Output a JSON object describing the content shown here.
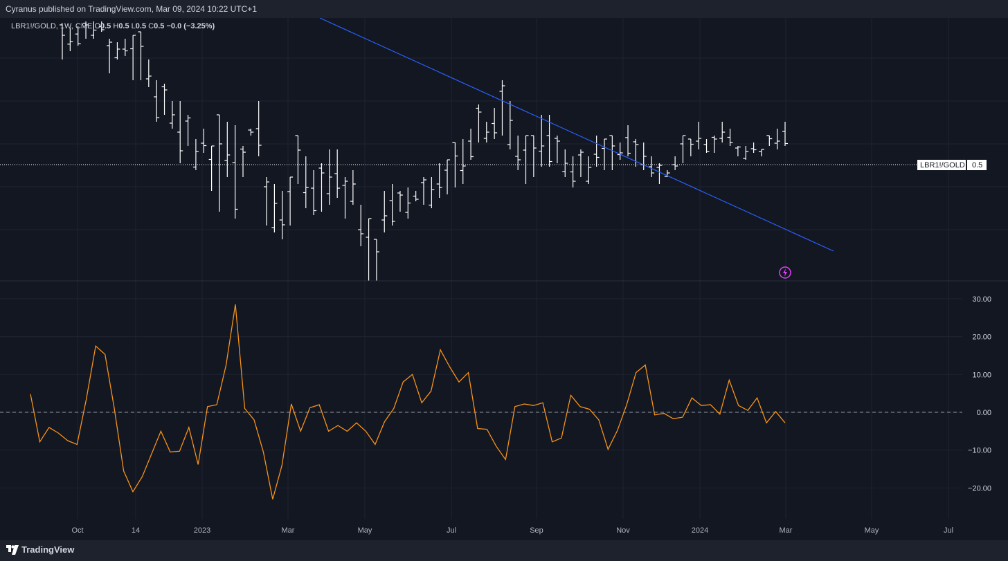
{
  "header": {
    "published": "Cyranus published on TradingView.com, Mar 09, 2024 10:22 UTC+1"
  },
  "footer": {
    "brand": "TradingView"
  },
  "legend": {
    "symbol": "LBR1!/GOLD, 1W, CME",
    "o_label": "O",
    "o_value": "0.5",
    "h_label": "H",
    "h_value": "0.5",
    "l_label": "L",
    "l_value": "0.5",
    "c_label": "C",
    "c_value": "0.5",
    "change": "−0.0 (−3.25%)"
  },
  "price_label": {
    "name": "LBR1!/GOLD",
    "value": "0.5"
  },
  "colors": {
    "background": "#131722",
    "bars": "#ffffff",
    "trendline": "#2962ff",
    "oscillator": "#f7931a",
    "alert": "#e040fb"
  },
  "icons": {
    "alert": "lightning-bolt-icon",
    "logo": "tradingview-logo-icon"
  },
  "chart_data": [
    {
      "type": "ohlc",
      "panel": "main",
      "x_ticks": [
        "Oct",
        "14",
        "2023",
        "Mar",
        "May",
        "Jul",
        "Sep",
        "Nov",
        "2024",
        "Mar",
        "May",
        "Jul"
      ],
      "last_value": 0.5
    },
    {
      "type": "line",
      "panel": "oscillator",
      "y_ticks": [
        "30.00",
        "20.00",
        "10.00",
        "0.00",
        "−10.00",
        "−20.00"
      ],
      "ylim": [
        -25,
        32
      ],
      "zero_line": true,
      "values": [
        4.8,
        -7.8,
        -4.0,
        -5.5,
        -7.5,
        -8.5,
        3.5,
        17.5,
        15.3,
        1.0,
        -15.5,
        -21.0,
        -17.0,
        -11.0,
        -5.0,
        -10.5,
        -10.3,
        -4.0,
        -13.8,
        1.5,
        2.0,
        12.5,
        28.5,
        1.0,
        -2.0,
        -10.5,
        -23.0,
        -14.0,
        2.2,
        -5.0,
        1.2,
        2.0,
        -5.0,
        -3.5,
        -5.0,
        -2.8,
        -5.0,
        -8.5,
        -2.5,
        1.0,
        8.0,
        10.0,
        2.5,
        5.6,
        16.5,
        12.0,
        8.0,
        10.5,
        -4.3,
        -4.5,
        -9.0,
        -12.5,
        1.5,
        2.2,
        1.8,
        2.5,
        -7.8,
        -6.8,
        4.5,
        1.5,
        0.8,
        -2.0,
        -9.8,
        -4.8,
        2.0,
        10.5,
        12.5,
        -0.7,
        -0.3,
        -1.7,
        -1.3,
        3.8,
        1.8,
        2.0,
        -0.5,
        8.5,
        1.8,
        0.5,
        3.8,
        -2.8,
        0.2,
        -2.8
      ]
    }
  ]
}
